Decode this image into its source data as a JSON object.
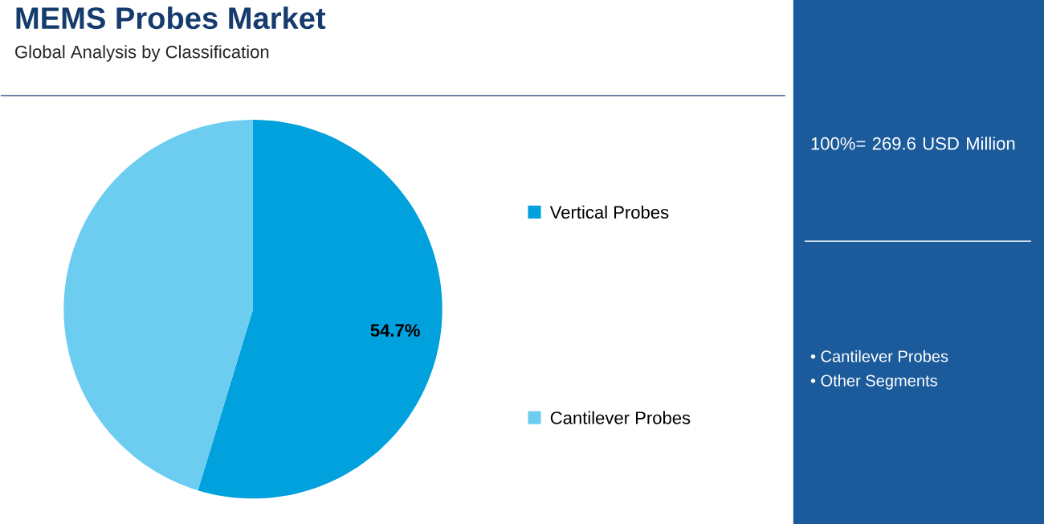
{
  "chart_data": {
    "type": "pie",
    "title": "MEMS Probes Market",
    "subtitle": "Global Analysis by Classification",
    "categories": [
      "Vertical Probes",
      "Cantilever Probes"
    ],
    "values": [
      54.7,
      45.3
    ],
    "colors": [
      "#00a1dc",
      "#6dcdf1"
    ],
    "value_labels": [
      "54.7%",
      null
    ],
    "legend": "right",
    "annotations": [
      "100%= 269.6 USD Million",
      "• Cantilever Probes",
      "• Other Segments"
    ]
  }
}
